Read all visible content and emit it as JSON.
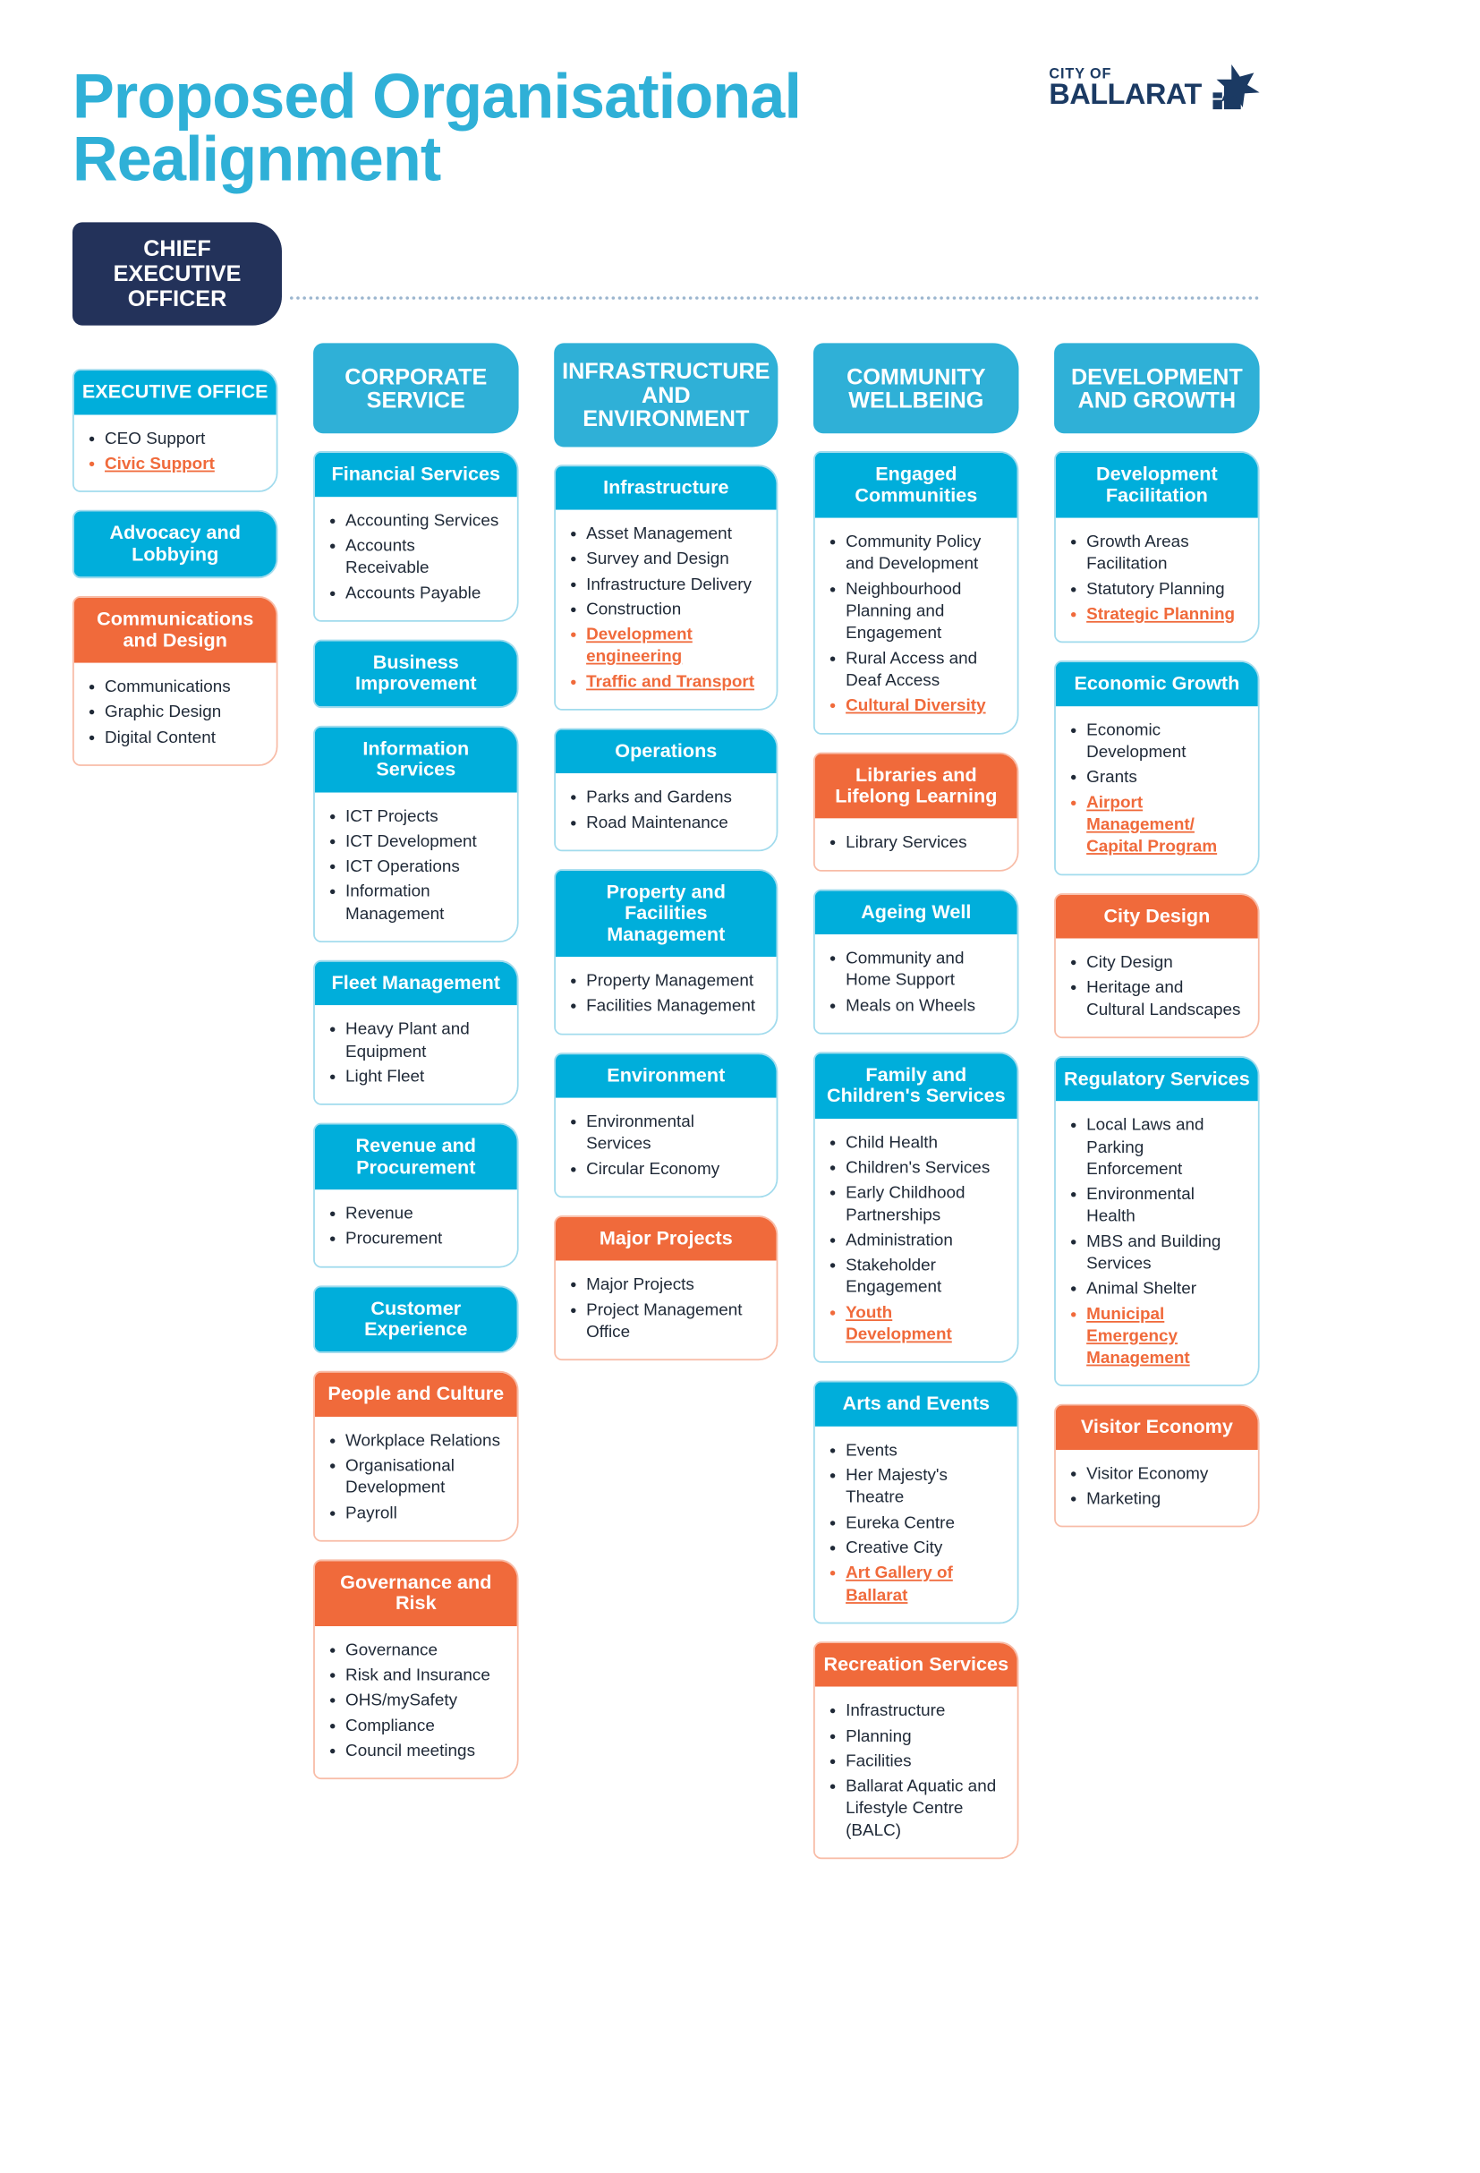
{
  "title": "Proposed Organisational Realignment",
  "brand": {
    "top": "CITY OF",
    "bottom": "BALLARAT"
  },
  "colors": {
    "title": "#2fb0d7",
    "division_header": "#2fb0d7",
    "card_blue": "#00aedb",
    "card_orange": "#f06a3b",
    "ceo_bg": "#23325a",
    "navy": "#1b3a63",
    "highlight_text": "#f06a3b"
  },
  "typography": {
    "title_fontsize_pt": 58,
    "division_fontsize_pt": 21,
    "card_head_fontsize_pt": 18,
    "body_fontsize_pt": 16,
    "font_family": "Arial Narrow / Helvetica condensed"
  },
  "ceo": "CHIEF EXECUTIVE OFFICER",
  "columns": [
    {
      "id": "exec",
      "division": null,
      "units": [
        {
          "id": "exec-office",
          "style": "blue",
          "title": "EXECUTIVE OFFICE",
          "items": [
            {
              "text": "CEO Support"
            },
            {
              "text": "Civic Support",
              "highlight": true
            }
          ]
        },
        {
          "id": "advocacy",
          "style": "blue",
          "title": "Advocacy and Lobbying",
          "items": []
        },
        {
          "id": "comms-design",
          "style": "orange",
          "title": "Communications and Design",
          "items": [
            {
              "text": "Communications"
            },
            {
              "text": "Graphic Design"
            },
            {
              "text": "Digital Content"
            }
          ]
        }
      ]
    },
    {
      "id": "corporate",
      "division": "CORPORATE SERVICE",
      "units": [
        {
          "id": "fin-services",
          "style": "blue",
          "title": "Financial Services",
          "items": [
            {
              "text": "Accounting Services"
            },
            {
              "text": "Accounts Receivable"
            },
            {
              "text": "Accounts Payable"
            }
          ]
        },
        {
          "id": "biz-improve",
          "style": "blue",
          "title": "Business Improvement",
          "items": []
        },
        {
          "id": "info-services",
          "style": "blue",
          "title": "Information Services",
          "items": [
            {
              "text": "ICT Projects"
            },
            {
              "text": "ICT Development"
            },
            {
              "text": "ICT Operations"
            },
            {
              "text": "Information Management"
            }
          ]
        },
        {
          "id": "fleet",
          "style": "blue",
          "title": "Fleet Management",
          "items": [
            {
              "text": "Heavy Plant and Equipment"
            },
            {
              "text": "Light Fleet"
            }
          ]
        },
        {
          "id": "revenue-proc",
          "style": "blue",
          "title": "Revenue and Procurement",
          "items": [
            {
              "text": "Revenue"
            },
            {
              "text": "Procurement"
            }
          ]
        },
        {
          "id": "cust-exp",
          "style": "blue",
          "title": "Customer Experience",
          "items": []
        },
        {
          "id": "people-culture",
          "style": "orange",
          "title": "People and Culture",
          "items": [
            {
              "text": "Workplace Relations"
            },
            {
              "text": "Organisational Development"
            },
            {
              "text": "Payroll"
            }
          ]
        },
        {
          "id": "gov-risk",
          "style": "orange",
          "title": "Governance and Risk",
          "items": [
            {
              "text": "Governance"
            },
            {
              "text": "Risk and Insurance"
            },
            {
              "text": "OHS/mySafety"
            },
            {
              "text": "Compliance"
            },
            {
              "text": "Council meetings"
            }
          ]
        }
      ]
    },
    {
      "id": "infra-env",
      "division": "INFRASTRUCTURE AND ENVIRONMENT",
      "units": [
        {
          "id": "infrastructure",
          "style": "blue",
          "title": "Infrastructure",
          "items": [
            {
              "text": "Asset Management"
            },
            {
              "text": "Survey and Design"
            },
            {
              "text": "Infrastructure Delivery"
            },
            {
              "text": "Construction"
            },
            {
              "text": "Development engineering",
              "highlight": true
            },
            {
              "text": "Traffic and Transport",
              "highlight": true
            }
          ]
        },
        {
          "id": "operations",
          "style": "blue",
          "title": "Operations",
          "items": [
            {
              "text": "Parks and Gardens"
            },
            {
              "text": "Road Maintenance"
            }
          ]
        },
        {
          "id": "prop-fac",
          "style": "blue",
          "title": "Property and Facilities Management",
          "items": [
            {
              "text": "Property Management"
            },
            {
              "text": "Facilities Management"
            }
          ]
        },
        {
          "id": "environment",
          "style": "blue",
          "title": "Environment",
          "items": [
            {
              "text": "Environmental Services"
            },
            {
              "text": "Circular Economy"
            }
          ]
        },
        {
          "id": "major-projects",
          "style": "orange",
          "title": "Major Projects",
          "items": [
            {
              "text": "Major Projects"
            },
            {
              "text": "Project Management Office"
            }
          ]
        }
      ]
    },
    {
      "id": "community",
      "division": "COMMUNITY WELLBEING",
      "units": [
        {
          "id": "engaged-comm",
          "style": "blue",
          "title": "Engaged Communities",
          "items": [
            {
              "text": "Community Policy and Development"
            },
            {
              "text": "Neighbourhood Planning and Engagement"
            },
            {
              "text": "Rural Access and Deaf Access"
            },
            {
              "text": "Cultural Diversity",
              "highlight": true
            }
          ]
        },
        {
          "id": "libraries",
          "style": "orange",
          "title": "Libraries and Lifelong Learning",
          "items": [
            {
              "text": "Library Services"
            }
          ]
        },
        {
          "id": "ageing-well",
          "style": "blue",
          "title": "Ageing Well",
          "items": [
            {
              "text": "Community and Home Support"
            },
            {
              "text": "Meals on Wheels"
            }
          ]
        },
        {
          "id": "family-children",
          "style": "blue",
          "title": "Family and Children's Services",
          "items": [
            {
              "text": "Child Health"
            },
            {
              "text": "Children's Services"
            },
            {
              "text": "Early Childhood Partnerships"
            },
            {
              "text": "Administration"
            },
            {
              "text": "Stakeholder Engagement"
            },
            {
              "text": "Youth Development",
              "highlight": true
            }
          ]
        },
        {
          "id": "arts-events",
          "style": "blue",
          "title": "Arts and Events",
          "items": [
            {
              "text": "Events"
            },
            {
              "text": "Her Majesty's Theatre"
            },
            {
              "text": "Eureka Centre"
            },
            {
              "text": "Creative City"
            },
            {
              "text": "Art Gallery of Ballarat",
              "highlight": true
            }
          ]
        },
        {
          "id": "recreation",
          "style": "orange",
          "title": "Recreation Services",
          "items": [
            {
              "text": "Infrastructure"
            },
            {
              "text": "Planning"
            },
            {
              "text": "Facilities"
            },
            {
              "text": "Ballarat Aquatic and Lifestyle Centre (BALC)"
            }
          ]
        }
      ]
    },
    {
      "id": "dev-growth",
      "division": "DEVELOPMENT AND GROWTH",
      "units": [
        {
          "id": "dev-facil",
          "style": "blue",
          "title": "Development Facilitation",
          "items": [
            {
              "text": "Growth Areas Facilitation"
            },
            {
              "text": "Statutory Planning"
            },
            {
              "text": "Strategic Planning",
              "highlight": true
            }
          ]
        },
        {
          "id": "econ-growth",
          "style": "blue",
          "title": "Economic Growth",
          "items": [
            {
              "text": "Economic Development"
            },
            {
              "text": "Grants"
            },
            {
              "text": "Airport Management/ Capital Program",
              "highlight": true
            }
          ]
        },
        {
          "id": "city-design",
          "style": "orange",
          "title": "City Design",
          "items": [
            {
              "text": "City Design"
            },
            {
              "text": "Heritage and Cultural Landscapes"
            }
          ]
        },
        {
          "id": "regulatory",
          "style": "blue",
          "title": "Regulatory Services",
          "items": [
            {
              "text": "Local Laws and Parking Enforcement"
            },
            {
              "text": "Environmental Health"
            },
            {
              "text": "MBS and Building Services"
            },
            {
              "text": "Animal Shelter"
            },
            {
              "text": "Municipal Emergency Management",
              "highlight": true
            }
          ]
        },
        {
          "id": "visitor-econ",
          "style": "orange",
          "title": "Visitor Economy",
          "items": [
            {
              "text": "Visitor Economy"
            },
            {
              "text": "Marketing"
            }
          ]
        }
      ]
    }
  ]
}
